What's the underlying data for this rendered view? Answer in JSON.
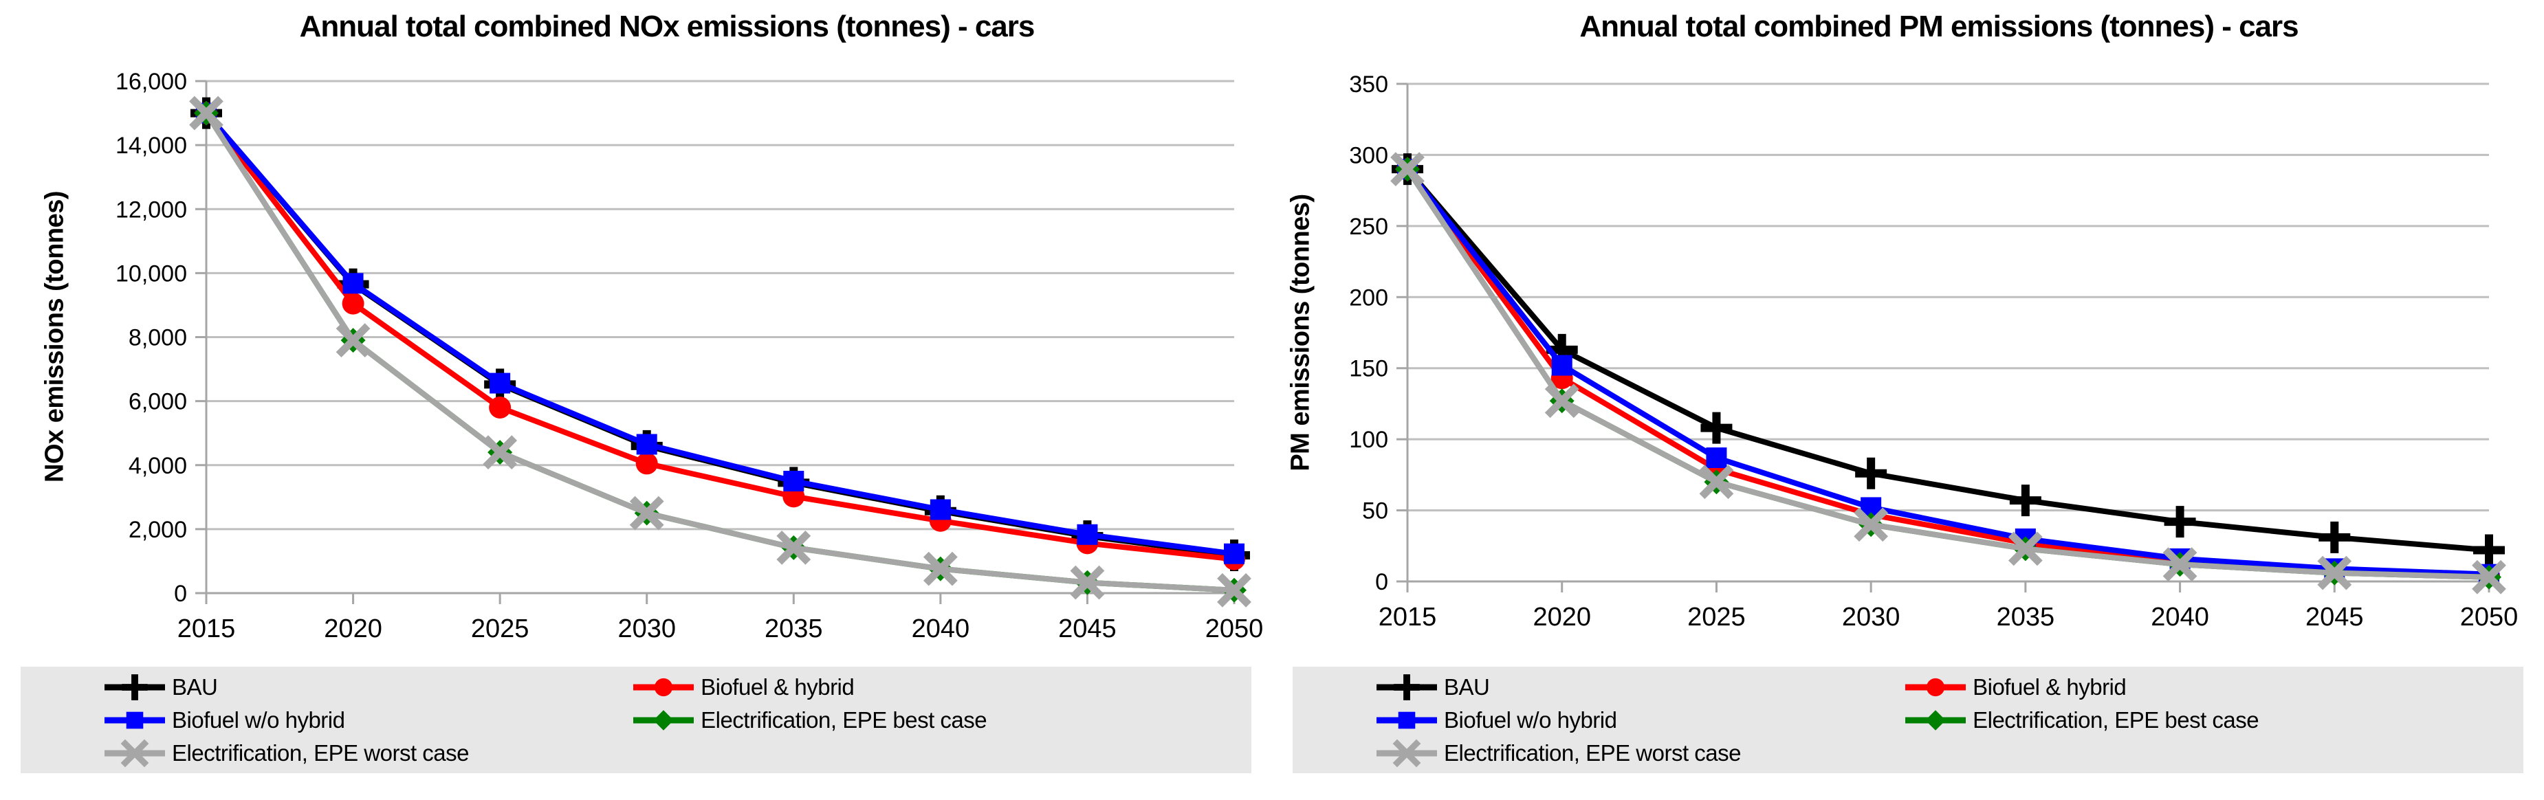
{
  "page": {
    "background": "#ffffff",
    "colors": {
      "grid": "#bfbfbf",
      "axis": "#a6a6a6",
      "legend_bg": "#e7e7e7",
      "text": "#000000"
    }
  },
  "chart_data": [
    {
      "type": "line",
      "title": "Annual total combined NOx emissions (tonnes) - cars",
      "xlabel": "",
      "ylabel": "NOx emissions (tonnes)",
      "categories": [
        "2015",
        "2020",
        "2025",
        "2030",
        "2035",
        "2040",
        "2045",
        "2050"
      ],
      "ylim": [
        0,
        16000
      ],
      "ytick_step": 2000,
      "ytick_labels": [
        "0",
        "2,000",
        "4,000",
        "6,000",
        "8,000",
        "10,000",
        "12,000",
        "14,000",
        "16,000"
      ],
      "grid": true,
      "legend_position": "bottom",
      "series": [
        {
          "name": "BAU",
          "color": "#000000",
          "marker": "plus",
          "values": [
            15000,
            9650,
            6520,
            4600,
            3450,
            2560,
            1780,
            1180
          ]
        },
        {
          "name": "Biofuel & hybrid",
          "color": "#ff0000",
          "marker": "circle",
          "values": [
            15000,
            9050,
            5800,
            4050,
            3020,
            2260,
            1560,
            1060
          ]
        },
        {
          "name": "Biofuel w/o hybrid",
          "color": "#0000ff",
          "marker": "square",
          "values": [
            15000,
            9680,
            6560,
            4650,
            3500,
            2610,
            1830,
            1230
          ]
        },
        {
          "name": "Electrification, EPE best case",
          "color": "#008000",
          "marker": "diamond",
          "values": [
            15000,
            7900,
            4400,
            2500,
            1420,
            760,
            330,
            90
          ]
        },
        {
          "name": "Electrification, EPE worst case",
          "color": "#a6a6a6",
          "marker": "x",
          "values": [
            15000,
            7900,
            4400,
            2500,
            1420,
            760,
            330,
            90
          ]
        }
      ]
    },
    {
      "type": "line",
      "title": "Annual total combined PM emissions (tonnes) - cars",
      "xlabel": "",
      "ylabel": "PM emissions (tonnes)",
      "categories": [
        "2015",
        "2020",
        "2025",
        "2030",
        "2035",
        "2040",
        "2045",
        "2050"
      ],
      "ylim": [
        0,
        350
      ],
      "ytick_step": 50,
      "ytick_labels": [
        "0",
        "50",
        "100",
        "150",
        "200",
        "250",
        "300",
        "350"
      ],
      "grid": true,
      "legend_position": "bottom",
      "series": [
        {
          "name": "BAU",
          "color": "#000000",
          "marker": "plus",
          "values": [
            290,
            163,
            108,
            76,
            57,
            42,
            31,
            22
          ]
        },
        {
          "name": "Biofuel & hybrid",
          "color": "#ff0000",
          "marker": "circle",
          "values": [
            290,
            143,
            79,
            47,
            27,
            14,
            7,
            4
          ]
        },
        {
          "name": "Biofuel w/o hybrid",
          "color": "#0000ff",
          "marker": "square",
          "values": [
            290,
            152,
            87,
            52,
            30,
            16,
            9,
            5
          ]
        },
        {
          "name": "Electrification, EPE best case",
          "color": "#008000",
          "marker": "diamond",
          "values": [
            290,
            127,
            70,
            40,
            23,
            12,
            6,
            3
          ]
        },
        {
          "name": "Electrification, EPE worst case",
          "color": "#a6a6a6",
          "marker": "x",
          "values": [
            290,
            127,
            70,
            40,
            23,
            12,
            6,
            3
          ]
        }
      ]
    }
  ]
}
